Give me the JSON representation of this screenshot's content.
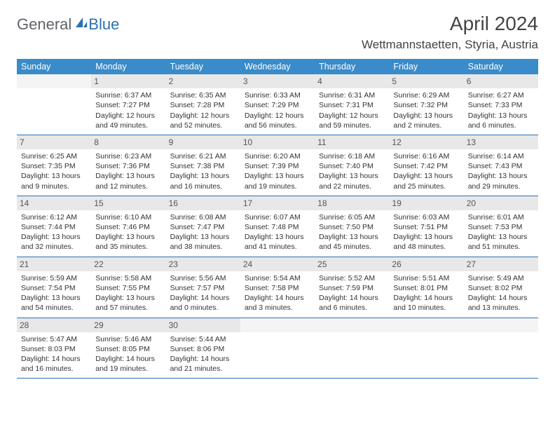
{
  "logo": {
    "general": "General",
    "blue": "Blue"
  },
  "title": "April 2024",
  "location": "Wettmannstaetten, Styria, Austria",
  "colors": {
    "header_bg": "#3a8bc9",
    "header_text": "#ffffff",
    "date_bg": "#e8e8e8",
    "border": "#2a72b5",
    "logo_blue": "#2a72b5",
    "logo_gray": "#5f6368"
  },
  "day_names": [
    "Sunday",
    "Monday",
    "Tuesday",
    "Wednesday",
    "Thursday",
    "Friday",
    "Saturday"
  ],
  "weeks": [
    [
      {
        "empty": true
      },
      {
        "d": "1",
        "sr": "Sunrise: 6:37 AM",
        "ss": "Sunset: 7:27 PM",
        "dl1": "Daylight: 12 hours",
        "dl2": "and 49 minutes."
      },
      {
        "d": "2",
        "sr": "Sunrise: 6:35 AM",
        "ss": "Sunset: 7:28 PM",
        "dl1": "Daylight: 12 hours",
        "dl2": "and 52 minutes."
      },
      {
        "d": "3",
        "sr": "Sunrise: 6:33 AM",
        "ss": "Sunset: 7:29 PM",
        "dl1": "Daylight: 12 hours",
        "dl2": "and 56 minutes."
      },
      {
        "d": "4",
        "sr": "Sunrise: 6:31 AM",
        "ss": "Sunset: 7:31 PM",
        "dl1": "Daylight: 12 hours",
        "dl2": "and 59 minutes."
      },
      {
        "d": "5",
        "sr": "Sunrise: 6:29 AM",
        "ss": "Sunset: 7:32 PM",
        "dl1": "Daylight: 13 hours",
        "dl2": "and 2 minutes."
      },
      {
        "d": "6",
        "sr": "Sunrise: 6:27 AM",
        "ss": "Sunset: 7:33 PM",
        "dl1": "Daylight: 13 hours",
        "dl2": "and 6 minutes."
      }
    ],
    [
      {
        "d": "7",
        "sr": "Sunrise: 6:25 AM",
        "ss": "Sunset: 7:35 PM",
        "dl1": "Daylight: 13 hours",
        "dl2": "and 9 minutes."
      },
      {
        "d": "8",
        "sr": "Sunrise: 6:23 AM",
        "ss": "Sunset: 7:36 PM",
        "dl1": "Daylight: 13 hours",
        "dl2": "and 12 minutes."
      },
      {
        "d": "9",
        "sr": "Sunrise: 6:21 AM",
        "ss": "Sunset: 7:38 PM",
        "dl1": "Daylight: 13 hours",
        "dl2": "and 16 minutes."
      },
      {
        "d": "10",
        "sr": "Sunrise: 6:20 AM",
        "ss": "Sunset: 7:39 PM",
        "dl1": "Daylight: 13 hours",
        "dl2": "and 19 minutes."
      },
      {
        "d": "11",
        "sr": "Sunrise: 6:18 AM",
        "ss": "Sunset: 7:40 PM",
        "dl1": "Daylight: 13 hours",
        "dl2": "and 22 minutes."
      },
      {
        "d": "12",
        "sr": "Sunrise: 6:16 AM",
        "ss": "Sunset: 7:42 PM",
        "dl1": "Daylight: 13 hours",
        "dl2": "and 25 minutes."
      },
      {
        "d": "13",
        "sr": "Sunrise: 6:14 AM",
        "ss": "Sunset: 7:43 PM",
        "dl1": "Daylight: 13 hours",
        "dl2": "and 29 minutes."
      }
    ],
    [
      {
        "d": "14",
        "sr": "Sunrise: 6:12 AM",
        "ss": "Sunset: 7:44 PM",
        "dl1": "Daylight: 13 hours",
        "dl2": "and 32 minutes."
      },
      {
        "d": "15",
        "sr": "Sunrise: 6:10 AM",
        "ss": "Sunset: 7:46 PM",
        "dl1": "Daylight: 13 hours",
        "dl2": "and 35 minutes."
      },
      {
        "d": "16",
        "sr": "Sunrise: 6:08 AM",
        "ss": "Sunset: 7:47 PM",
        "dl1": "Daylight: 13 hours",
        "dl2": "and 38 minutes."
      },
      {
        "d": "17",
        "sr": "Sunrise: 6:07 AM",
        "ss": "Sunset: 7:48 PM",
        "dl1": "Daylight: 13 hours",
        "dl2": "and 41 minutes."
      },
      {
        "d": "18",
        "sr": "Sunrise: 6:05 AM",
        "ss": "Sunset: 7:50 PM",
        "dl1": "Daylight: 13 hours",
        "dl2": "and 45 minutes."
      },
      {
        "d": "19",
        "sr": "Sunrise: 6:03 AM",
        "ss": "Sunset: 7:51 PM",
        "dl1": "Daylight: 13 hours",
        "dl2": "and 48 minutes."
      },
      {
        "d": "20",
        "sr": "Sunrise: 6:01 AM",
        "ss": "Sunset: 7:53 PM",
        "dl1": "Daylight: 13 hours",
        "dl2": "and 51 minutes."
      }
    ],
    [
      {
        "d": "21",
        "sr": "Sunrise: 5:59 AM",
        "ss": "Sunset: 7:54 PM",
        "dl1": "Daylight: 13 hours",
        "dl2": "and 54 minutes."
      },
      {
        "d": "22",
        "sr": "Sunrise: 5:58 AM",
        "ss": "Sunset: 7:55 PM",
        "dl1": "Daylight: 13 hours",
        "dl2": "and 57 minutes."
      },
      {
        "d": "23",
        "sr": "Sunrise: 5:56 AM",
        "ss": "Sunset: 7:57 PM",
        "dl1": "Daylight: 14 hours",
        "dl2": "and 0 minutes."
      },
      {
        "d": "24",
        "sr": "Sunrise: 5:54 AM",
        "ss": "Sunset: 7:58 PM",
        "dl1": "Daylight: 14 hours",
        "dl2": "and 3 minutes."
      },
      {
        "d": "25",
        "sr": "Sunrise: 5:52 AM",
        "ss": "Sunset: 7:59 PM",
        "dl1": "Daylight: 14 hours",
        "dl2": "and 6 minutes."
      },
      {
        "d": "26",
        "sr": "Sunrise: 5:51 AM",
        "ss": "Sunset: 8:01 PM",
        "dl1": "Daylight: 14 hours",
        "dl2": "and 10 minutes."
      },
      {
        "d": "27",
        "sr": "Sunrise: 5:49 AM",
        "ss": "Sunset: 8:02 PM",
        "dl1": "Daylight: 14 hours",
        "dl2": "and 13 minutes."
      }
    ],
    [
      {
        "d": "28",
        "sr": "Sunrise: 5:47 AM",
        "ss": "Sunset: 8:03 PM",
        "dl1": "Daylight: 14 hours",
        "dl2": "and 16 minutes."
      },
      {
        "d": "29",
        "sr": "Sunrise: 5:46 AM",
        "ss": "Sunset: 8:05 PM",
        "dl1": "Daylight: 14 hours",
        "dl2": "and 19 minutes."
      },
      {
        "d": "30",
        "sr": "Sunrise: 5:44 AM",
        "ss": "Sunset: 8:06 PM",
        "dl1": "Daylight: 14 hours",
        "dl2": "and 21 minutes."
      },
      {
        "empty": true
      },
      {
        "empty": true
      },
      {
        "empty": true
      },
      {
        "empty": true
      }
    ]
  ]
}
